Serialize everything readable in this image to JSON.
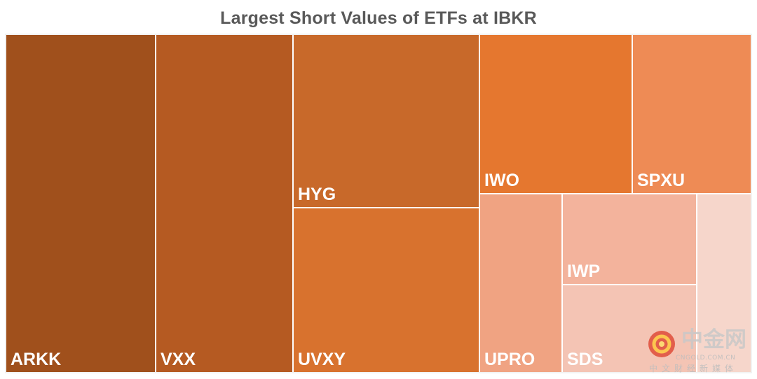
{
  "chart_data": {
    "type": "treemap",
    "title": "Largest Short Values of ETFs at IBKR",
    "items": [
      {
        "name": "ARKK",
        "value": 1000,
        "color": "#A0501C"
      },
      {
        "name": "VXX",
        "value": 920,
        "color": "#B55A22"
      },
      {
        "name": "HYG",
        "value": 580,
        "color": "#C8692A"
      },
      {
        "name": "UVXY",
        "value": 560,
        "color": "#D8722E"
      },
      {
        "name": "IWO",
        "value": 470,
        "color": "#E5772F"
      },
      {
        "name": "SPXU",
        "value": 370,
        "color": "#EE8B55"
      },
      {
        "name": "UPRO",
        "value": 270,
        "color": "#F0A382"
      },
      {
        "name": "IWP",
        "value": 235,
        "color": "#F3B39C"
      },
      {
        "name": "SDS",
        "value": 230,
        "color": "#F4C4B4"
      },
      {
        "name": "",
        "value": 155,
        "color": "#F6D6CB"
      }
    ]
  },
  "watermark": {
    "name": "中金网",
    "domain": "CNGOLD.COM.CN",
    "tagline": "中文财经新媒体"
  }
}
